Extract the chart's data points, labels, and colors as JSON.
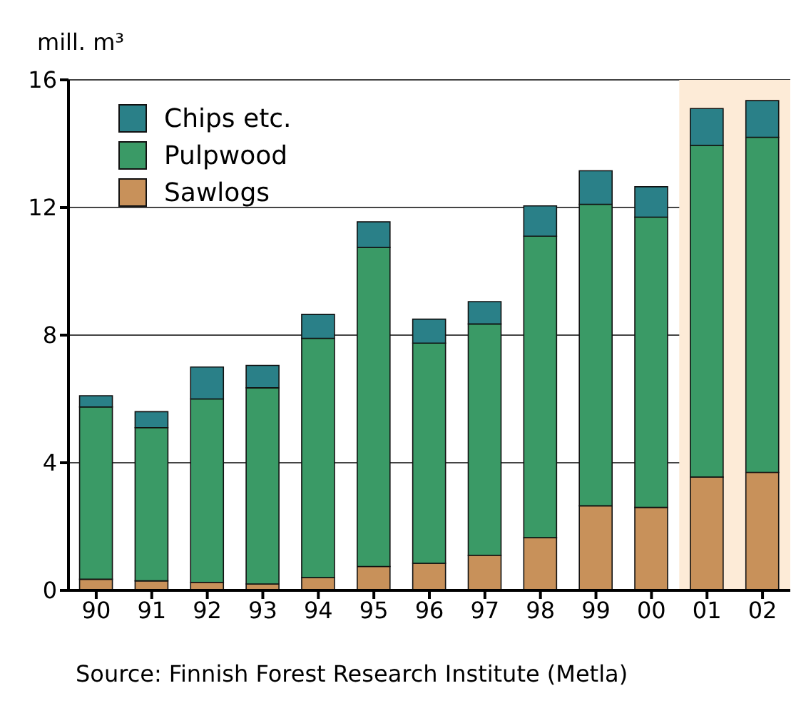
{
  "chart_data": {
    "type": "bar",
    "stacked": true,
    "ylabel": "mill. m³",
    "categories": [
      "90",
      "91",
      "92",
      "93",
      "94",
      "95",
      "96",
      "97",
      "98",
      "99",
      "00",
      "01",
      "02"
    ],
    "series": [
      {
        "name": "Sawlogs",
        "color": "#c8915a",
        "values": [
          0.35,
          0.3,
          0.25,
          0.2,
          0.4,
          0.75,
          0.85,
          1.1,
          1.65,
          2.65,
          2.6,
          3.55,
          3.7
        ]
      },
      {
        "name": "Pulpwood",
        "color": "#3a9a66",
        "values": [
          5.4,
          4.8,
          5.75,
          6.15,
          7.5,
          10.0,
          6.9,
          7.25,
          9.45,
          9.45,
          9.1,
          10.4,
          10.5
        ]
      },
      {
        "name": "Chips etc.",
        "color": "#2a8088",
        "values": [
          0.35,
          0.5,
          1.0,
          0.7,
          0.75,
          0.8,
          0.75,
          0.7,
          0.95,
          1.05,
          0.95,
          1.15,
          1.15
        ]
      }
    ],
    "ylim": [
      0,
      16
    ],
    "yticks": [
      0,
      4,
      8,
      12,
      16
    ],
    "grid": "y",
    "legend": "top left",
    "bands": [
      {
        "axis": "x",
        "from": "01",
        "to": "02",
        "color": "#fdebd7"
      }
    ],
    "annotations": [
      "Source: Finnish Forest Research Institute (Metla)"
    ]
  }
}
